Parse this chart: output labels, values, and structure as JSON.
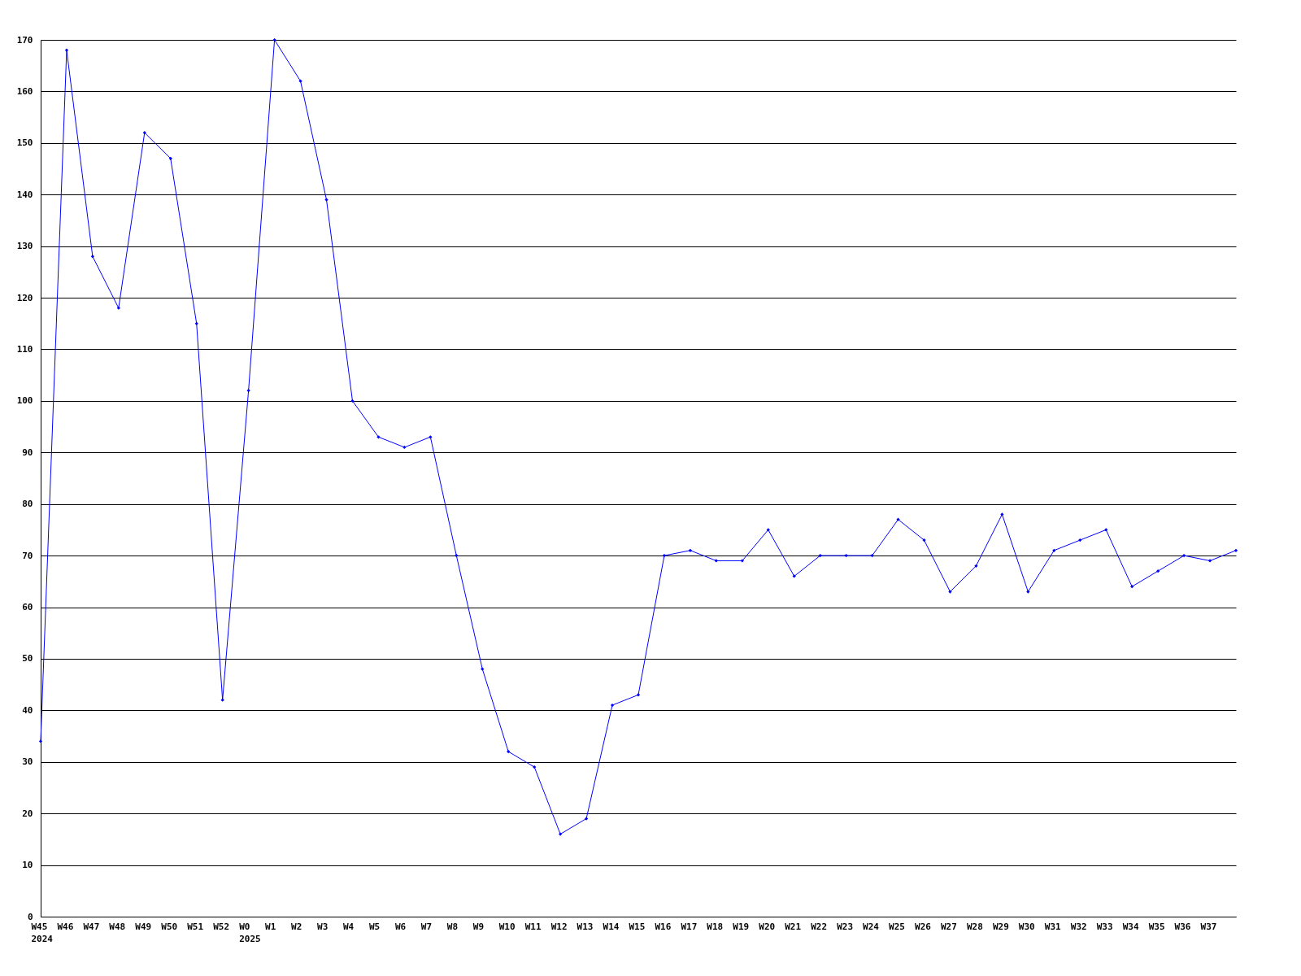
{
  "chart_data": {
    "type": "line",
    "categories": [
      "W45\n2024",
      "W46",
      "W47",
      "W48",
      "W49",
      "W50",
      "W51",
      "W52",
      "W0\n2025",
      "W1",
      "W2",
      "W3",
      "W4",
      "W5",
      "W6",
      "W7",
      "W8",
      "W9",
      "W10",
      "W11",
      "W12",
      "W13",
      "W14",
      "W15",
      "W16",
      "W17",
      "W18",
      "W19",
      "W20",
      "W21",
      "W22",
      "W23",
      "W24",
      "W25",
      "W26",
      "W27",
      "W28",
      "W29",
      "W30",
      "W31",
      "W32",
      "W33",
      "W34",
      "W35",
      "W36",
      "W37",
      null
    ],
    "series": [
      {
        "color": "#0000ff",
        "values": [
          34,
          168,
          128,
          118,
          152,
          147,
          115,
          42,
          102,
          170,
          162,
          139,
          100,
          93,
          91,
          93,
          70,
          48,
          32,
          29,
          16,
          19,
          41,
          43,
          70,
          71,
          69,
          69,
          75,
          66,
          70,
          70,
          70,
          77,
          73,
          63,
          68,
          78,
          63,
          71,
          73,
          75,
          64,
          67,
          70,
          69,
          71
        ]
      }
    ],
    "ylim": [
      0,
      170
    ],
    "yticks": [
      0,
      10,
      20,
      30,
      40,
      50,
      60,
      70,
      80,
      90,
      100,
      110,
      120,
      130,
      140,
      150,
      160,
      170
    ],
    "grid": "y",
    "marker": "diamond"
  }
}
